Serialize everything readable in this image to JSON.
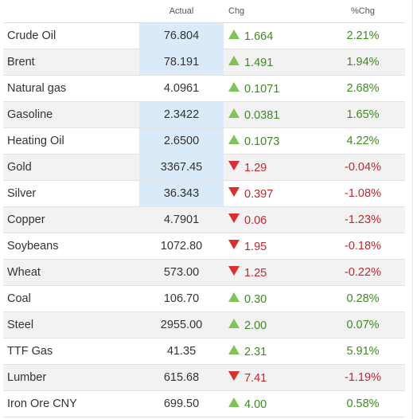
{
  "table": {
    "headers": {
      "name": "",
      "actual": "Actual",
      "chg": "Chg",
      "pct": "%Chg"
    },
    "colors": {
      "up_text": "#3d8b1f",
      "down_text": "#c0282e",
      "up_arrow": "#7fc45a",
      "down_arrow": "#d9302f",
      "highlight": "#daeaf8"
    },
    "rows": [
      {
        "name": "Crude Oil",
        "actual": "76.804",
        "chg": "1.664",
        "pct": "2.21%",
        "direction": "up",
        "highlight": true
      },
      {
        "name": "Brent",
        "actual": "78.191",
        "chg": "1.491",
        "pct": "1.94%",
        "direction": "up",
        "highlight": true
      },
      {
        "name": "Natural gas",
        "actual": "4.0961",
        "chg": "0.1071",
        "pct": "2.68%",
        "direction": "up",
        "highlight": false
      },
      {
        "name": "Gasoline",
        "actual": "2.3422",
        "chg": "0.0381",
        "pct": "1.65%",
        "direction": "up",
        "highlight": true
      },
      {
        "name": "Heating Oil",
        "actual": "2.6500",
        "chg": "0.1073",
        "pct": "4.22%",
        "direction": "up",
        "highlight": true
      },
      {
        "name": "Gold",
        "actual": "3367.45",
        "chg": "1.29",
        "pct": "-0.04%",
        "direction": "down",
        "highlight": true
      },
      {
        "name": "Silver",
        "actual": "36.343",
        "chg": "0.397",
        "pct": "-1.08%",
        "direction": "down",
        "highlight": true
      },
      {
        "name": "Copper",
        "actual": "4.7901",
        "chg": "0.06",
        "pct": "-1.23%",
        "direction": "down",
        "highlight": false
      },
      {
        "name": "Soybeans",
        "actual": "1072.80",
        "chg": "1.95",
        "pct": "-0.18%",
        "direction": "down",
        "highlight": false
      },
      {
        "name": "Wheat",
        "actual": "573.00",
        "chg": "1.25",
        "pct": "-0.22%",
        "direction": "down",
        "highlight": false
      },
      {
        "name": "Coal",
        "actual": "106.70",
        "chg": "0.30",
        "pct": "0.28%",
        "direction": "up",
        "highlight": false
      },
      {
        "name": "Steel",
        "actual": "2955.00",
        "chg": "2.00",
        "pct": "0.07%",
        "direction": "up",
        "highlight": false
      },
      {
        "name": "TTF Gas",
        "actual": "41.35",
        "chg": "2.31",
        "pct": "5.91%",
        "direction": "up",
        "highlight": false
      },
      {
        "name": "Lumber",
        "actual": "615.68",
        "chg": "7.41",
        "pct": "-1.19%",
        "direction": "down",
        "highlight": false
      },
      {
        "name": "Iron Ore CNY",
        "actual": "699.50",
        "chg": "4.00",
        "pct": "0.58%",
        "direction": "up",
        "highlight": false
      }
    ]
  }
}
